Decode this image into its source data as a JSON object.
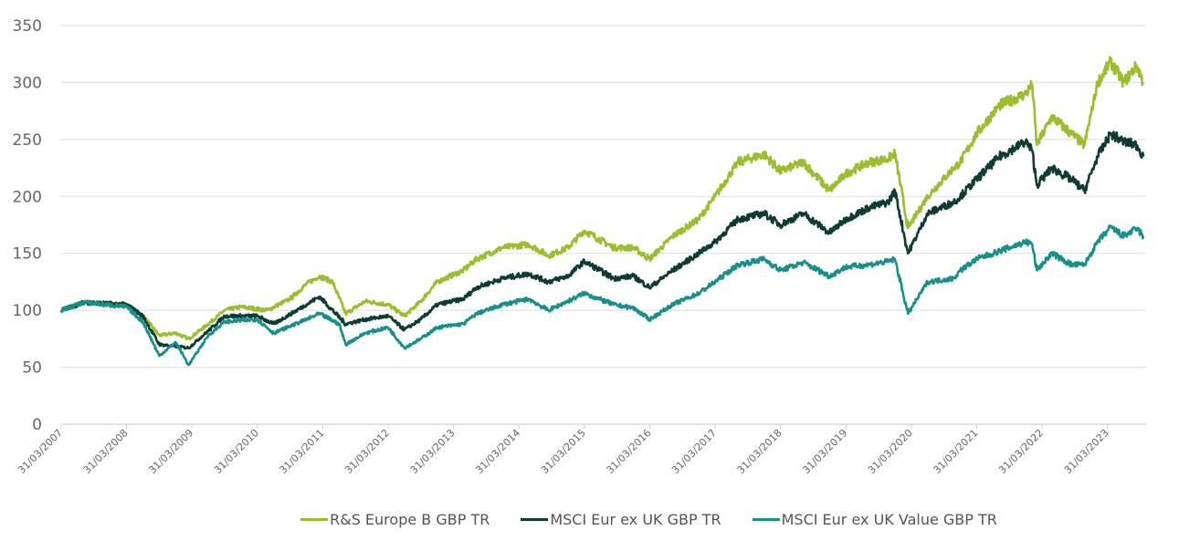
{
  "chart_data": {
    "type": "line",
    "title": "",
    "xlabel": "",
    "ylabel": "",
    "ylim": [
      0,
      350
    ],
    "yticks": [
      0,
      50,
      100,
      150,
      200,
      250,
      300,
      350
    ],
    "xlim": [
      2007.25,
      2023.8
    ],
    "xtick_labels": [
      "31/03/2007",
      "31/03/2008",
      "31/03/2009",
      "31/03/2010",
      "31/03/2011",
      "31/03/2012",
      "31/03/2013",
      "31/03/2014",
      "31/03/2015",
      "31/03/2016",
      "31/03/2017",
      "31/03/2018",
      "31/03/2019",
      "31/03/2020",
      "31/03/2021",
      "31/03/2022",
      "31/03/2023"
    ],
    "grid": "horizontal",
    "legend_position": "bottom",
    "series": [
      {
        "name": "R&S Europe B GBP TR",
        "color": "#9BBE2E",
        "points": [
          [
            2007.25,
            100
          ],
          [
            2007.6,
            107
          ],
          [
            2008.0,
            105
          ],
          [
            2008.25,
            105
          ],
          [
            2008.5,
            95
          ],
          [
            2008.75,
            78
          ],
          [
            2009.0,
            80
          ],
          [
            2009.2,
            75
          ],
          [
            2009.5,
            88
          ],
          [
            2009.75,
            100
          ],
          [
            2010.0,
            103
          ],
          [
            2010.4,
            100
          ],
          [
            2010.75,
            110
          ],
          [
            2011.0,
            123
          ],
          [
            2011.2,
            130
          ],
          [
            2011.4,
            125
          ],
          [
            2011.6,
            97
          ],
          [
            2011.9,
            108
          ],
          [
            2012.25,
            105
          ],
          [
            2012.5,
            95
          ],
          [
            2012.75,
            108
          ],
          [
            2013.0,
            125
          ],
          [
            2013.4,
            135
          ],
          [
            2013.6,
            145
          ],
          [
            2014.0,
            155
          ],
          [
            2014.4,
            158
          ],
          [
            2014.7,
            148
          ],
          [
            2015.0,
            155
          ],
          [
            2015.25,
            170
          ],
          [
            2015.7,
            155
          ],
          [
            2016.0,
            155
          ],
          [
            2016.25,
            145
          ],
          [
            2016.6,
            165
          ],
          [
            2017.0,
            180
          ],
          [
            2017.25,
            200
          ],
          [
            2017.6,
            230
          ],
          [
            2018.0,
            237
          ],
          [
            2018.25,
            222
          ],
          [
            2018.6,
            230
          ],
          [
            2019.0,
            205
          ],
          [
            2019.25,
            220
          ],
          [
            2019.6,
            230
          ],
          [
            2019.9,
            233
          ],
          [
            2020.0,
            238
          ],
          [
            2020.2,
            172
          ],
          [
            2020.5,
            200
          ],
          [
            2020.9,
            225
          ],
          [
            2021.0,
            230
          ],
          [
            2021.25,
            255
          ],
          [
            2021.6,
            280
          ],
          [
            2022.0,
            290
          ],
          [
            2022.1,
            298
          ],
          [
            2022.17,
            245
          ],
          [
            2022.4,
            270
          ],
          [
            2022.7,
            255
          ],
          [
            2022.9,
            245
          ],
          [
            2023.1,
            300
          ],
          [
            2023.3,
            318
          ],
          [
            2023.5,
            300
          ],
          [
            2023.7,
            315
          ],
          [
            2023.8,
            300
          ]
        ]
      },
      {
        "name": "MSCI Eur ex UK GBP TR",
        "color": "#0E3B33",
        "points": [
          [
            2007.25,
            100
          ],
          [
            2007.6,
            107
          ],
          [
            2008.25,
            105
          ],
          [
            2008.5,
            95
          ],
          [
            2008.75,
            70
          ],
          [
            2009.2,
            67
          ],
          [
            2009.5,
            82
          ],
          [
            2009.75,
            95
          ],
          [
            2010.25,
            95
          ],
          [
            2010.5,
            88
          ],
          [
            2011.0,
            105
          ],
          [
            2011.2,
            112
          ],
          [
            2011.6,
            88
          ],
          [
            2011.9,
            92
          ],
          [
            2012.25,
            95
          ],
          [
            2012.5,
            83
          ],
          [
            2012.75,
            92
          ],
          [
            2013.0,
            105
          ],
          [
            2013.4,
            110
          ],
          [
            2013.6,
            120
          ],
          [
            2014.0,
            128
          ],
          [
            2014.4,
            132
          ],
          [
            2014.7,
            125
          ],
          [
            2015.0,
            130
          ],
          [
            2015.25,
            143
          ],
          [
            2015.7,
            128
          ],
          [
            2016.0,
            130
          ],
          [
            2016.25,
            120
          ],
          [
            2016.6,
            135
          ],
          [
            2017.0,
            150
          ],
          [
            2017.25,
            160
          ],
          [
            2017.6,
            180
          ],
          [
            2018.0,
            185
          ],
          [
            2018.25,
            175
          ],
          [
            2018.6,
            185
          ],
          [
            2019.0,
            168
          ],
          [
            2019.25,
            180
          ],
          [
            2019.6,
            190
          ],
          [
            2019.9,
            195
          ],
          [
            2020.0,
            205
          ],
          [
            2020.2,
            150
          ],
          [
            2020.5,
            185
          ],
          [
            2020.9,
            195
          ],
          [
            2021.0,
            200
          ],
          [
            2021.25,
            215
          ],
          [
            2021.6,
            235
          ],
          [
            2022.0,
            248
          ],
          [
            2022.1,
            240
          ],
          [
            2022.17,
            210
          ],
          [
            2022.4,
            225
          ],
          [
            2022.7,
            215
          ],
          [
            2022.9,
            205
          ],
          [
            2023.1,
            235
          ],
          [
            2023.3,
            255
          ],
          [
            2023.5,
            248
          ],
          [
            2023.7,
            245
          ],
          [
            2023.8,
            235
          ]
        ]
      },
      {
        "name": "MSCI Eur ex UK Value GBP TR",
        "color": "#17908C",
        "points": [
          [
            2007.25,
            100
          ],
          [
            2007.6,
            107
          ],
          [
            2008.25,
            103
          ],
          [
            2008.5,
            90
          ],
          [
            2008.75,
            60
          ],
          [
            2009.0,
            72
          ],
          [
            2009.2,
            52
          ],
          [
            2009.5,
            78
          ],
          [
            2009.75,
            90
          ],
          [
            2010.25,
            92
          ],
          [
            2010.5,
            80
          ],
          [
            2011.0,
            92
          ],
          [
            2011.2,
            97
          ],
          [
            2011.5,
            88
          ],
          [
            2011.6,
            70
          ],
          [
            2011.9,
            80
          ],
          [
            2012.25,
            85
          ],
          [
            2012.5,
            67
          ],
          [
            2012.75,
            75
          ],
          [
            2013.0,
            85
          ],
          [
            2013.4,
            88
          ],
          [
            2013.6,
            97
          ],
          [
            2014.0,
            105
          ],
          [
            2014.4,
            110
          ],
          [
            2014.7,
            100
          ],
          [
            2015.0,
            108
          ],
          [
            2015.25,
            115
          ],
          [
            2015.7,
            105
          ],
          [
            2016.0,
            102
          ],
          [
            2016.25,
            92
          ],
          [
            2016.6,
            105
          ],
          [
            2017.0,
            115
          ],
          [
            2017.25,
            125
          ],
          [
            2017.6,
            140
          ],
          [
            2018.0,
            145
          ],
          [
            2018.25,
            135
          ],
          [
            2018.6,
            142
          ],
          [
            2019.0,
            130
          ],
          [
            2019.25,
            138
          ],
          [
            2019.6,
            140
          ],
          [
            2019.9,
            143
          ],
          [
            2020.0,
            145
          ],
          [
            2020.2,
            97
          ],
          [
            2020.5,
            125
          ],
          [
            2020.9,
            128
          ],
          [
            2021.0,
            135
          ],
          [
            2021.25,
            145
          ],
          [
            2021.6,
            152
          ],
          [
            2022.0,
            160
          ],
          [
            2022.1,
            158
          ],
          [
            2022.17,
            135
          ],
          [
            2022.4,
            150
          ],
          [
            2022.7,
            140
          ],
          [
            2022.9,
            140
          ],
          [
            2023.1,
            160
          ],
          [
            2023.3,
            173
          ],
          [
            2023.5,
            165
          ],
          [
            2023.7,
            172
          ],
          [
            2023.8,
            165
          ]
        ]
      }
    ]
  }
}
